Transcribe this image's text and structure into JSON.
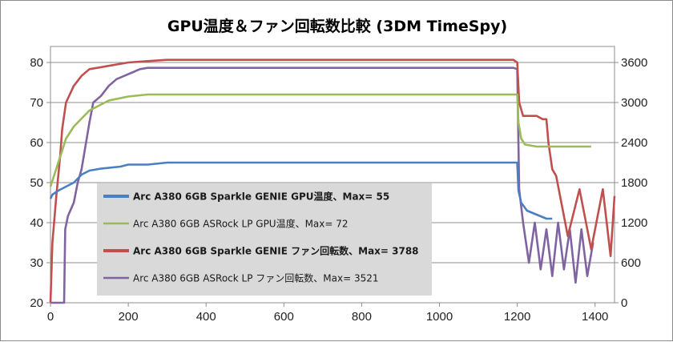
{
  "chart_data": {
    "type": "line",
    "title": "GPU温度＆ファン回転数比較 (3DM TimeSpy)",
    "xlabel": "",
    "ylabel": "",
    "y2label": "",
    "xlim": [
      0,
      1450
    ],
    "ylim": [
      20,
      84
    ],
    "y2lim": [
      0,
      3840
    ],
    "x_ticks": [
      0,
      200,
      400,
      600,
      800,
      1000,
      1200,
      1400
    ],
    "y_ticks": [
      20,
      30,
      40,
      50,
      60,
      70,
      80
    ],
    "y2_ticks": [
      0,
      600,
      1200,
      1800,
      2400,
      3000,
      3600
    ],
    "grid": true,
    "legend_position": "center-left",
    "series": [
      {
        "name": "Arc A380 6GB Sparkle GENIE GPU温度、Max= 55",
        "axis": "left",
        "color": "#4a7fc1",
        "bold": true,
        "x": [
          0,
          5,
          20,
          40,
          60,
          70,
          80,
          100,
          130,
          180,
          200,
          250,
          300,
          400,
          500,
          600,
          700,
          800,
          1000,
          1100,
          1190,
          1200,
          1203,
          1210,
          1225,
          1250,
          1275,
          1290
        ],
        "y": [
          46,
          47,
          48,
          49,
          50,
          51,
          52,
          53,
          53.5,
          54,
          54.5,
          54.5,
          55,
          55,
          55,
          55,
          55,
          55,
          55,
          55,
          55,
          55,
          48,
          45,
          43,
          42,
          41,
          41
        ]
      },
      {
        "name": "Arc A380 6GB ASRock LP GPU温度、Max= 72",
        "axis": "left",
        "color": "#9bbb59",
        "bold": false,
        "x": [
          0,
          10,
          20,
          30,
          40,
          60,
          80,
          100,
          130,
          150,
          200,
          250,
          300,
          400,
          500,
          600,
          700,
          800,
          1000,
          1100,
          1190,
          1200,
          1203,
          1210,
          1220,
          1250,
          1300,
          1350,
          1390
        ],
        "y": [
          49,
          52,
          55,
          58,
          61,
          64,
          66,
          68,
          69.5,
          70.5,
          71.5,
          72,
          72,
          72,
          72,
          72,
          72,
          72,
          72,
          72,
          72,
          72,
          65,
          61,
          59.5,
          59,
          59,
          59,
          59
        ]
      },
      {
        "name": "Arc A380 6GB Sparkle GENIE ファン回転数、Max= 3788",
        "axis": "right",
        "color": "#c0504d",
        "bold": true,
        "x": [
          0,
          5,
          15,
          25,
          30,
          40,
          60,
          80,
          100,
          150,
          200,
          250,
          300,
          400,
          500,
          600,
          800,
          1000,
          1100,
          1190,
          1200,
          1205,
          1215,
          1250,
          1265,
          1275,
          1280,
          1290,
          1300,
          1330,
          1360,
          1390,
          1420,
          1440,
          1450
        ],
        "y": [
          0,
          900,
          1600,
          2200,
          2600,
          3000,
          3250,
          3400,
          3500,
          3550,
          3600,
          3620,
          3640,
          3640,
          3640,
          3640,
          3640,
          3640,
          3640,
          3640,
          3600,
          3000,
          2800,
          2800,
          2750,
          2750,
          2400,
          2000,
          1900,
          1000,
          1700,
          800,
          1700,
          700,
          1600
        ]
      },
      {
        "name": "Arc A380 6GB ASRock LP ファン回転数、Max= 3521",
        "axis": "right",
        "color": "#8064a2",
        "bold": false,
        "x": [
          0,
          35,
          38,
          45,
          60,
          70,
          80,
          90,
          100,
          110,
          130,
          150,
          170,
          190,
          210,
          230,
          250,
          300,
          400,
          500,
          600,
          700,
          800,
          900,
          1000,
          1100,
          1190,
          1200,
          1205,
          1215,
          1230,
          1245,
          1260,
          1275,
          1290,
          1305,
          1320,
          1335,
          1350,
          1365,
          1380,
          1395
        ],
        "y": [
          0,
          0,
          1100,
          1300,
          1500,
          1800,
          2000,
          2350,
          2700,
          3000,
          3100,
          3250,
          3350,
          3400,
          3450,
          3500,
          3520,
          3520,
          3520,
          3520,
          3520,
          3520,
          3520,
          3520,
          3520,
          3520,
          3520,
          3500,
          1700,
          1200,
          600,
          1200,
          500,
          1100,
          400,
          1200,
          500,
          1100,
          300,
          1100,
          400,
          900
        ]
      }
    ]
  }
}
